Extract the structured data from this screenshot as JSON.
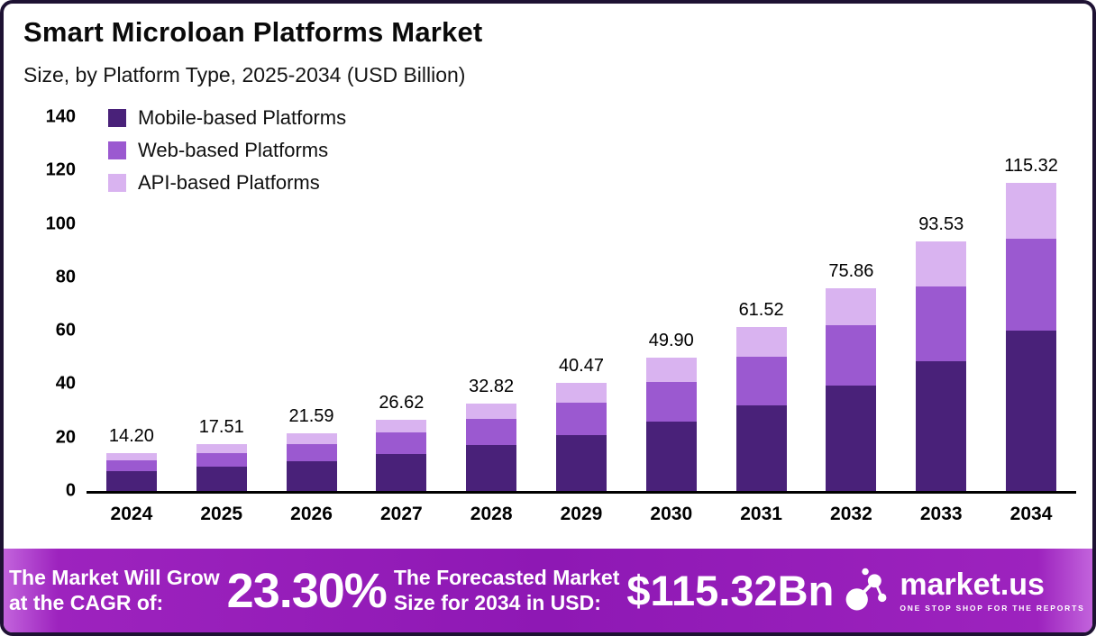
{
  "header": {
    "title": "Smart Microloan Platforms Market",
    "subtitle": "Size, by Platform Type, 2025-2034 (USD Billion)"
  },
  "chart_data": {
    "type": "bar",
    "stacked": true,
    "title": "Smart Microloan Platforms Market",
    "subtitle": "Size, by Platform Type, 2025-2034 (USD Billion)",
    "unit": "USD Billion",
    "categories": [
      "2024",
      "2025",
      "2026",
      "2027",
      "2028",
      "2029",
      "2030",
      "2031",
      "2032",
      "2033",
      "2034"
    ],
    "series": [
      {
        "name": "Mobile-based Platforms",
        "color": "#492179",
        "values": [
          7.4,
          9.1,
          11.2,
          13.8,
          17.1,
          21.0,
          26.0,
          32.0,
          39.4,
          48.6,
          60.0
        ]
      },
      {
        "name": "Web-based Platforms",
        "color": "#9b59d0",
        "values": [
          4.2,
          5.2,
          6.5,
          8.0,
          9.8,
          12.1,
          14.9,
          18.4,
          22.8,
          28.1,
          34.6
        ]
      },
      {
        "name": "API-based Platforms",
        "color": "#d9b3f0",
        "values": [
          2.6,
          3.21,
          3.89,
          4.82,
          5.92,
          7.37,
          9.0,
          11.12,
          13.66,
          16.83,
          20.72
        ]
      }
    ],
    "totals": [
      14.2,
      17.51,
      21.59,
      26.62,
      32.82,
      40.47,
      49.9,
      61.52,
      75.86,
      93.53,
      115.32
    ],
    "total_labels": [
      "14.20",
      "17.51",
      "21.59",
      "26.62",
      "32.82",
      "40.47",
      "49.90",
      "61.52",
      "75.86",
      "93.53",
      "115.32"
    ],
    "ylim": [
      0,
      140
    ],
    "yticks": [
      0,
      20,
      40,
      60,
      80,
      100,
      120,
      140
    ],
    "grid": false,
    "legend_position": "top-left"
  },
  "banner": {
    "cagr_label_line1": "The Market Will Grow",
    "cagr_label_line2": "at the CAGR of:",
    "cagr_value": "23.30%",
    "forecast_label_line1": "The Forecasted Market",
    "forecast_label_line2": "Size for 2034 in USD:",
    "forecast_value": "$115.32Bn",
    "brand": "market.us",
    "tagline": "ONE STOP SHOP FOR THE REPORTS",
    "background_color": "#9d23be"
  },
  "frame": {
    "border_color": "#1e1233"
  }
}
